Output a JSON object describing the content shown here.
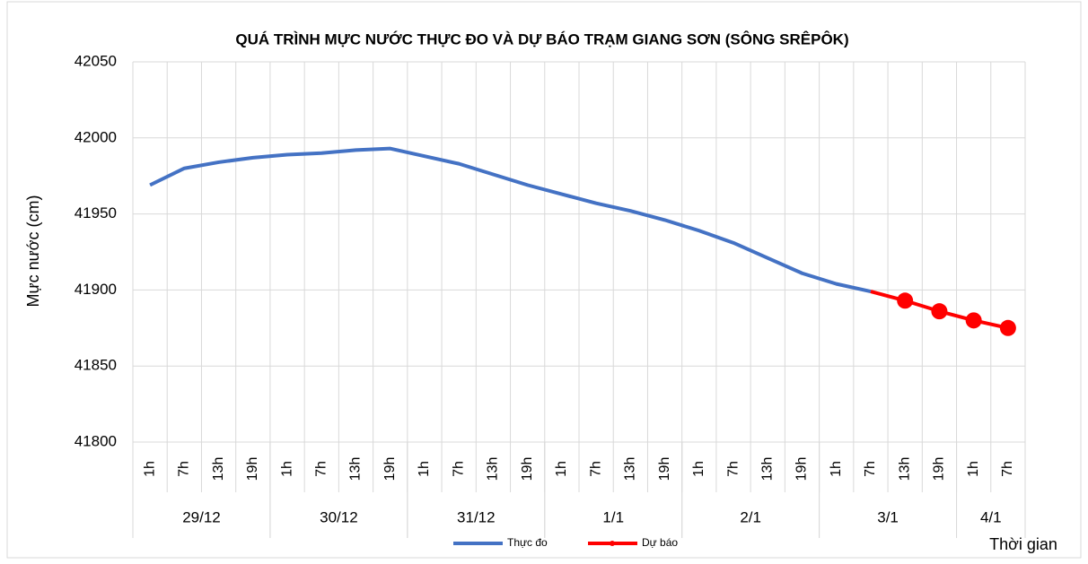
{
  "chart_data": {
    "type": "line",
    "title": "QUÁ TRÌNH MỰC NƯỚC THỰC ĐO VÀ DỰ BÁO TRẠM GIANG SƠN (SÔNG SRÊPÔK)",
    "y_label": "Mực nước (cm)",
    "x_label": "Thời gian",
    "categories": [
      "1h",
      "7h",
      "13h",
      "19h",
      "1h",
      "7h",
      "13h",
      "19h",
      "1h",
      "7h",
      "13h",
      "19h",
      "1h",
      "7h",
      "13h",
      "19h",
      "1h",
      "7h",
      "13h",
      "19h",
      "1h",
      "7h",
      "13h",
      "19h",
      "1h",
      "7h"
    ],
    "groups": [
      {
        "name": "29/12",
        "span": 4
      },
      {
        "name": "30/12",
        "span": 4
      },
      {
        "name": "31/12",
        "span": 4
      },
      {
        "name": "1/1",
        "span": 4
      },
      {
        "name": "2/1",
        "span": 4
      },
      {
        "name": "3/1",
        "span": 4
      },
      {
        "name": "4/1",
        "span": 2
      }
    ],
    "series": [
      {
        "name": "Thực đo",
        "color": "#4472c4",
        "values": [
          41969,
          41980,
          41984,
          41987,
          41989,
          41990,
          41992,
          41993,
          41988,
          41983,
          41976,
          41969,
          41963,
          41957,
          41952,
          41946,
          41939,
          41931,
          41921,
          41911,
          41904,
          41899,
          null,
          null,
          null,
          null
        ]
      },
      {
        "name": "Dự báo",
        "color": "#ff0000",
        "values": [
          null,
          null,
          null,
          null,
          null,
          null,
          null,
          null,
          null,
          null,
          null,
          null,
          null,
          null,
          null,
          null,
          null,
          null,
          null,
          null,
          null,
          41899,
          41893,
          41886,
          41880,
          41875
        ]
      }
    ],
    "ylim": [
      41800,
      42050
    ],
    "yticks": [
      41800,
      41850,
      41900,
      41950,
      42000,
      42050
    ],
    "grid": true,
    "legend": "bottom"
  }
}
